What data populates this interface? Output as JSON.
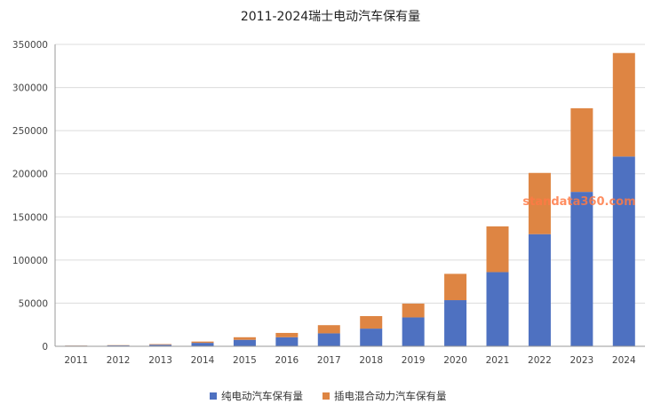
{
  "chart_data": {
    "type": "bar",
    "stacked": true,
    "title": "2011-2024瑞士电动汽车保有量",
    "categories": [
      "2011",
      "2012",
      "2013",
      "2014",
      "2015",
      "2016",
      "2017",
      "2018",
      "2019",
      "2020",
      "2021",
      "2022",
      "2023",
      "2024"
    ],
    "series": [
      {
        "name": "纯电动汽车保有量",
        "color": "#4e71c1",
        "values": [
          700,
          1000,
          1800,
          4000,
          7500,
          10500,
          15000,
          20500,
          33500,
          53500,
          86000,
          130000,
          179000,
          220000
        ]
      },
      {
        "name": "插电混合动力汽车保有量",
        "color": "#de8543",
        "values": [
          200,
          300,
          700,
          1500,
          3000,
          5000,
          9500,
          14500,
          16000,
          30500,
          53000,
          71000,
          97000,
          120000
        ]
      }
    ],
    "ylim": [
      0,
      350000
    ],
    "yticks": [
      0,
      50000,
      100000,
      150000,
      200000,
      250000,
      300000,
      350000
    ],
    "grid": true,
    "legend_position": "bottom-center",
    "watermark": "standata360.com"
  }
}
